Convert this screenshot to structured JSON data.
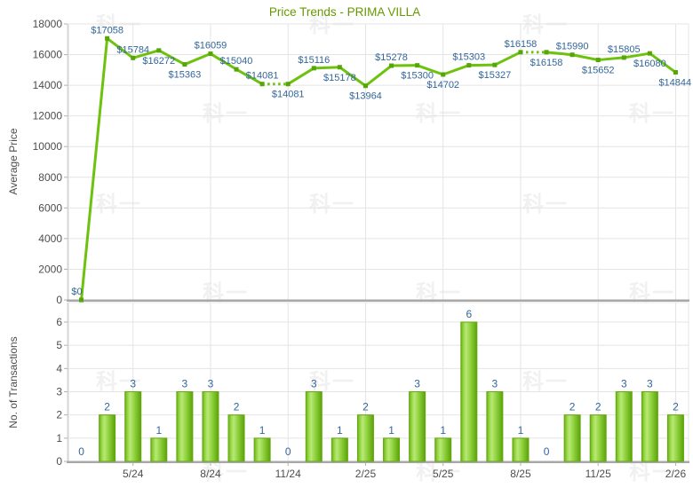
{
  "title": "Price Trends - PRIMA VILLA",
  "watermark_text": "科一",
  "colors": {
    "title": "#669900",
    "line": "#6dc20d",
    "marker": "#56a509",
    "bar_edge": "#62a90f",
    "bar_gradient": [
      "#6cb217",
      "#9bd94a",
      "#b9e877",
      "#8ed13c",
      "#5ca10a"
    ],
    "value_label": "#336699",
    "axis_text": "#4d4d4d",
    "grid": "#e4e4e4",
    "plot_border": "#d6d6d6",
    "axis_line": "#a8a8a8",
    "tick": "#b0b0b0",
    "watermark": "#f1f1f1"
  },
  "chart_data": [
    {
      "type": "line",
      "title": "Price Trends - PRIMA VILLA",
      "ylabel": "Average Price",
      "n_points": 24,
      "values": [
        0,
        17058,
        15784,
        16272,
        15363,
        16059,
        15040,
        14081,
        14081,
        15116,
        15178,
        13964,
        15278,
        15300,
        14702,
        15303,
        15327,
        16158,
        16158,
        15990,
        15652,
        15805,
        16080,
        14844
      ],
      "point_labels": [
        "$0",
        "$17058",
        "$15784",
        "$16272",
        "$15363",
        "$16059",
        "$15040",
        "$14081",
        "$14081",
        "$15116",
        "$15178",
        "$13964",
        "$15278",
        "$15300",
        "$14702",
        "$15303",
        "$15327",
        "$16158",
        "$16158",
        "$15990",
        "$15652",
        "$15805",
        "$16080",
        "$14844"
      ],
      "label_side": [
        "above",
        "above",
        "above",
        "below",
        "below",
        "above",
        "above",
        "above",
        "below",
        "above",
        "below",
        "below",
        "above",
        "below",
        "below",
        "above",
        "below",
        "above",
        "below",
        "above",
        "below",
        "above",
        "below",
        "below"
      ],
      "dotted_segments": [
        [
          7,
          8
        ],
        [
          17,
          18
        ]
      ],
      "ylim": [
        0,
        18000
      ],
      "ytick_step": 2000,
      "grid": true,
      "legend": "none"
    },
    {
      "type": "bar",
      "ylabel": "No. of Transactions",
      "n_points": 24,
      "values": [
        0,
        2,
        3,
        1,
        3,
        3,
        2,
        1,
        0,
        3,
        1,
        2,
        1,
        3,
        1,
        6,
        3,
        1,
        0,
        2,
        2,
        3,
        3,
        2
      ],
      "ylim": [
        0,
        6
      ],
      "ytick_step": 1,
      "grid": true,
      "x_tick_labels": [
        {
          "index": 2,
          "label": "5/24"
        },
        {
          "index": 5,
          "label": "8/24"
        },
        {
          "index": 8,
          "label": "11/24"
        },
        {
          "index": 11,
          "label": "2/25"
        },
        {
          "index": 14,
          "label": "5/25"
        },
        {
          "index": 17,
          "label": "8/25"
        },
        {
          "index": 20,
          "label": "11/25"
        },
        {
          "index": 23,
          "label": "2/26"
        }
      ]
    }
  ]
}
